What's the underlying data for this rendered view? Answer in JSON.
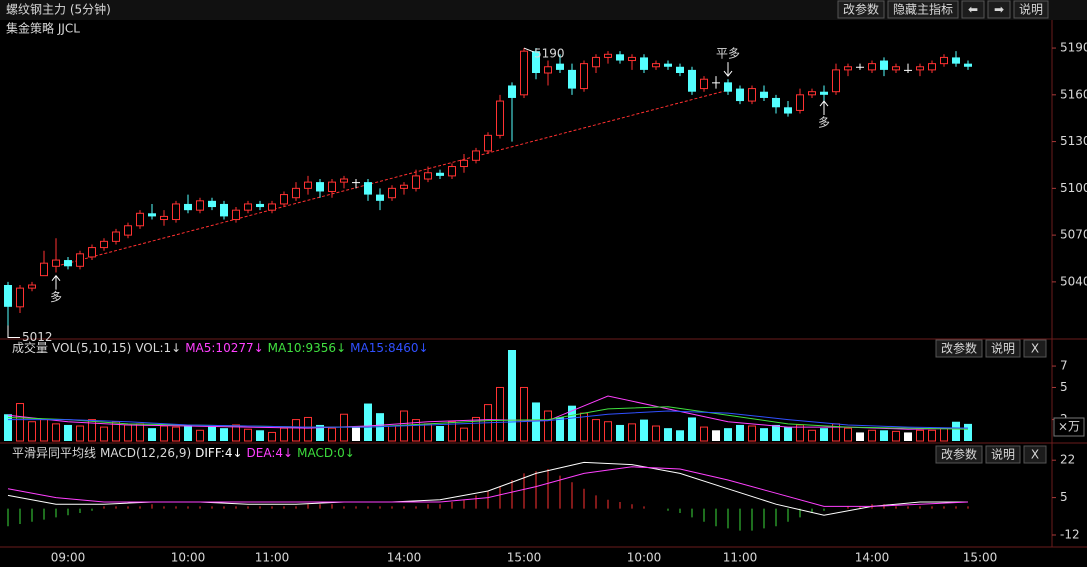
{
  "chart_data": [
    {
      "type": "candlestick",
      "title": "螺纹钢主力 (5分钟)",
      "subtitle": "集金策略 JJCL",
      "buttons": [
        "改参数",
        "隐藏主指标",
        "⬅",
        "➡",
        "说明"
      ],
      "categories": [
        null,
        null,
        null,
        null,
        null,
        "09:00",
        null,
        null,
        null,
        null,
        null,
        null,
        null,
        null,
        null,
        "10:00",
        null,
        null,
        null,
        null,
        null,
        null,
        "11:00",
        null,
        null,
        null,
        null,
        null,
        null,
        null,
        null,
        null,
        null,
        "14:00",
        null,
        null,
        null,
        null,
        null,
        null,
        null,
        null,
        null,
        "15:00",
        null,
        null,
        null,
        null,
        null,
        null,
        null,
        null,
        null,
        "10:00",
        null,
        null,
        null,
        null,
        null,
        null,
        null,
        "11:00",
        null,
        null,
        null,
        null,
        null,
        null,
        null,
        null,
        null,
        null,
        "14:00",
        null,
        null,
        null,
        null,
        null,
        null,
        null,
        null,
        "15:00"
      ],
      "candles": [
        [
          5038,
          5040,
          5012,
          5024
        ],
        [
          5024,
          5038,
          5020,
          5036
        ],
        [
          5036,
          5040,
          5034,
          5038
        ],
        [
          5044,
          5060,
          5044,
          5052
        ],
        [
          5050,
          5068,
          5046,
          5054
        ],
        [
          5054,
          5056,
          5048,
          5050
        ],
        [
          5050,
          5060,
          5048,
          5058
        ],
        [
          5056,
          5064,
          5054,
          5062
        ],
        [
          5062,
          5068,
          5060,
          5066
        ],
        [
          5066,
          5074,
          5064,
          5072
        ],
        [
          5070,
          5078,
          5068,
          5076
        ],
        [
          5076,
          5086,
          5074,
          5084
        ],
        [
          5084,
          5090,
          5080,
          5082
        ],
        [
          5080,
          5086,
          5076,
          5082
        ],
        [
          5080,
          5092,
          5078,
          5090
        ],
        [
          5090,
          5096,
          5084,
          5086
        ],
        [
          5086,
          5094,
          5084,
          5092
        ],
        [
          5092,
          5094,
          5086,
          5088
        ],
        [
          5090,
          5092,
          5080,
          5082
        ],
        [
          5080,
          5088,
          5078,
          5086
        ],
        [
          5086,
          5092,
          5084,
          5090
        ],
        [
          5090,
          5092,
          5086,
          5088
        ],
        [
          5086,
          5092,
          5084,
          5090
        ],
        [
          5090,
          5098,
          5088,
          5096
        ],
        [
          5094,
          5104,
          5092,
          5100
        ],
        [
          5100,
          5108,
          5096,
          5104
        ],
        [
          5104,
          5106,
          5094,
          5098
        ],
        [
          5098,
          5106,
          5094,
          5104
        ],
        [
          5104,
          5108,
          5100,
          5106
        ],
        [
          5104,
          5106,
          5100,
          5104
        ],
        [
          5104,
          5106,
          5092,
          5096
        ],
        [
          5096,
          5100,
          5086,
          5092
        ],
        [
          5094,
          5102,
          5092,
          5100
        ],
        [
          5100,
          5104,
          5096,
          5102
        ],
        [
          5100,
          5112,
          5098,
          5108
        ],
        [
          5106,
          5114,
          5104,
          5110
        ],
        [
          5110,
          5112,
          5106,
          5108
        ],
        [
          5108,
          5116,
          5106,
          5114
        ],
        [
          5114,
          5122,
          5110,
          5118
        ],
        [
          5118,
          5126,
          5116,
          5124
        ],
        [
          5124,
          5136,
          5122,
          5134
        ],
        [
          5134,
          5160,
          5132,
          5156
        ],
        [
          5166,
          5168,
          5130,
          5158
        ],
        [
          5160,
          5190,
          5158,
          5188
        ],
        [
          5188,
          5190,
          5170,
          5174
        ],
        [
          5174,
          5182,
          5166,
          5178
        ],
        [
          5180,
          5186,
          5174,
          5176
        ],
        [
          5176,
          5180,
          5160,
          5164
        ],
        [
          5164,
          5182,
          5162,
          5180
        ],
        [
          5178,
          5186,
          5174,
          5184
        ],
        [
          5184,
          5188,
          5180,
          5186
        ],
        [
          5186,
          5188,
          5180,
          5182
        ],
        [
          5182,
          5186,
          5176,
          5184
        ],
        [
          5184,
          5186,
          5174,
          5176
        ],
        [
          5178,
          5182,
          5176,
          5180
        ],
        [
          5180,
          5182,
          5176,
          5178
        ],
        [
          5178,
          5180,
          5172,
          5174
        ],
        [
          5176,
          5178,
          5160,
          5162
        ],
        [
          5164,
          5172,
          5162,
          5170
        ],
        [
          5168,
          5172,
          5164,
          5168
        ],
        [
          5168,
          5170,
          5160,
          5162
        ],
        [
          5164,
          5166,
          5154,
          5156
        ],
        [
          5156,
          5166,
          5154,
          5164
        ],
        [
          5162,
          5166,
          5156,
          5158
        ],
        [
          5158,
          5160,
          5148,
          5152
        ],
        [
          5152,
          5156,
          5146,
          5148
        ],
        [
          5150,
          5164,
          5148,
          5160
        ],
        [
          5160,
          5164,
          5158,
          5162
        ],
        [
          5162,
          5166,
          5156,
          5160
        ],
        [
          5162,
          5180,
          5160,
          5176
        ],
        [
          5176,
          5180,
          5172,
          5178
        ],
        [
          5178,
          5180,
          5176,
          5178
        ],
        [
          5176,
          5182,
          5174,
          5180
        ],
        [
          5182,
          5184,
          5172,
          5176
        ],
        [
          5176,
          5180,
          5174,
          5178
        ],
        [
          5176,
          5180,
          5174,
          5176
        ],
        [
          5176,
          5180,
          5172,
          5178
        ],
        [
          5176,
          5182,
          5174,
          5180
        ],
        [
          5180,
          5186,
          5178,
          5184
        ],
        [
          5184,
          5188,
          5178,
          5180
        ],
        [
          5180,
          5182,
          5176,
          5178
        ],
        null
      ],
      "up_color": "#ff3232",
      "down_color": "#54ffff",
      "flat_color": "#ffffff",
      "ylim": [
        5004,
        5208
      ],
      "yticks": [
        5040,
        5070,
        5100,
        5130,
        5160,
        5190
      ],
      "trendline": {
        "x": [
          4,
          60
        ],
        "y": [
          5050,
          5163
        ],
        "color": "#ff3030"
      },
      "signals": [
        {
          "x": 4,
          "y": 5044,
          "label": "多",
          "side": "below",
          "color": "#ff3232"
        },
        {
          "x": 60,
          "y": 5172,
          "label": "平多",
          "side": "above",
          "color": "#32e632"
        },
        {
          "x": 68,
          "y": 5156,
          "label": "多",
          "side": "below",
          "color": "#ff3232"
        }
      ],
      "annotations": [
        {
          "x": 43,
          "value": 5190,
          "side": "above"
        },
        {
          "x": 0,
          "value": 5012,
          "side": "below"
        }
      ]
    },
    {
      "type": "volume",
      "title": "成交量",
      "subtitle": "VOL(5,10,15)",
      "buttons": [
        "改参数",
        "说明",
        "X"
      ],
      "unit": "×万",
      "bars": {
        "name": "VOL:1↓",
        "values": [
          2.5,
          3.5,
          1.8,
          2.0,
          1.6,
          1.5,
          1.4,
          2.0,
          1.3,
          1.8,
          1.5,
          1.6,
          1.2,
          1.4,
          1.3,
          1.5,
          1.0,
          1.4,
          1.2,
          1.5,
          1.1,
          1.0,
          0.8,
          1.2,
          2.0,
          2.2,
          1.5,
          1.2,
          2.5,
          1.3,
          3.5,
          2.6,
          1.4,
          2.8,
          2.0,
          1.6,
          1.4,
          1.8,
          1.2,
          2.2,
          3.4,
          5.0,
          8.5,
          5.0,
          3.6,
          2.8,
          2.2,
          3.3,
          2.6,
          2.0,
          1.8,
          1.5,
          1.6,
          2.0,
          1.4,
          1.2,
          1.0,
          2.2,
          1.3,
          1.0,
          1.2,
          1.5,
          1.4,
          1.2,
          1.5,
          1.3,
          1.5,
          1.0,
          1.2,
          1.6,
          1.2,
          0.8,
          1.0,
          1.0,
          0.9,
          0.8,
          1.0,
          1.0,
          1.2,
          1.8,
          1.6,
          null
        ]
      },
      "series": [
        {
          "name": "MA5:10277↓",
          "color": "#ff40ff",
          "x": [
            0,
            5,
            10,
            15,
            20,
            25,
            30,
            35,
            40,
            45,
            50,
            55,
            60,
            65,
            70,
            75,
            80
          ],
          "values": [
            2.4,
            1.8,
            1.5,
            1.4,
            1.3,
            1.2,
            1.4,
            1.8,
            2.0,
            1.9,
            4.2,
            3.0,
            1.8,
            1.3,
            1.3,
            1.1,
            1.2
          ]
        },
        {
          "name": "MA10:9356↓",
          "color": "#40e040",
          "x": [
            0,
            5,
            10,
            15,
            20,
            25,
            30,
            35,
            40,
            45,
            50,
            55,
            60,
            65,
            70,
            75,
            80
          ],
          "values": [
            2.2,
            2.0,
            1.6,
            1.5,
            1.4,
            1.3,
            1.3,
            1.6,
            1.9,
            2.0,
            3.0,
            3.2,
            2.4,
            1.6,
            1.3,
            1.2,
            1.1
          ]
        },
        {
          "name": "MA15:8460↓",
          "color": "#3050ff",
          "x": [
            0,
            5,
            10,
            15,
            20,
            25,
            30,
            35,
            40,
            45,
            50,
            55,
            60,
            65,
            70,
            75,
            80
          ],
          "values": [
            2.0,
            2.0,
            1.8,
            1.5,
            1.4,
            1.3,
            1.3,
            1.5,
            1.7,
            1.9,
            2.5,
            2.8,
            2.6,
            2.0,
            1.5,
            1.3,
            1.2
          ]
        }
      ],
      "ylim": [
        0,
        8.5
      ],
      "yticks": [
        2,
        5,
        7
      ]
    },
    {
      "type": "macd",
      "title": "平滑异同平均线",
      "subtitle": "MACD(12,26,9)",
      "buttons": [
        "改参数",
        "说明",
        "X"
      ],
      "series": [
        {
          "name": "DIFF:4↓",
          "color": "#ffffff",
          "x": [
            0,
            4,
            8,
            12,
            16,
            20,
            24,
            28,
            32,
            36,
            40,
            44,
            48,
            52,
            56,
            60,
            64,
            68,
            72,
            76,
            80
          ],
          "values": [
            6,
            2,
            2,
            3,
            3,
            2,
            2,
            3,
            3,
            4,
            8,
            16,
            21,
            20,
            16,
            9,
            2,
            -3,
            1,
            3,
            3
          ]
        },
        {
          "name": "DEA:4↓",
          "color": "#ff40ff",
          "x": [
            0,
            4,
            8,
            12,
            16,
            20,
            24,
            28,
            32,
            36,
            40,
            44,
            48,
            52,
            56,
            60,
            64,
            68,
            72,
            76,
            80
          ],
          "values": [
            9,
            5,
            3,
            3,
            3,
            3,
            3,
            3,
            3,
            3,
            5,
            10,
            16,
            19,
            18,
            13,
            7,
            1,
            1,
            2,
            3
          ]
        }
      ],
      "histogram": {
        "name": "MACD:0↓",
        "legend_color": "#3cdc3c",
        "up_color": "#ff3232",
        "down_color": "#3cdc3c",
        "values": [
          -8,
          -7,
          -6,
          -5,
          -4,
          -3,
          -2,
          -1,
          1,
          1,
          1,
          1,
          2,
          1,
          1,
          1,
          1,
          1,
          1,
          1,
          1,
          1,
          1,
          1,
          1,
          2,
          2,
          2,
          1,
          1,
          1,
          1,
          1,
          1,
          1,
          2,
          2,
          3,
          4,
          6,
          8,
          10,
          13,
          16,
          17,
          18,
          15,
          12,
          9,
          6,
          4,
          3,
          2,
          1,
          0,
          -1,
          -2,
          -4,
          -6,
          -8,
          -9,
          -10,
          -10,
          -9,
          -8,
          -6,
          -4,
          -2,
          -1,
          0,
          1,
          1,
          2,
          2,
          1,
          1,
          1,
          1,
          1,
          1,
          1,
          null
        ]
      },
      "ylim": [
        -17,
        28
      ],
      "yticks": [
        -12,
        5,
        22
      ]
    }
  ]
}
